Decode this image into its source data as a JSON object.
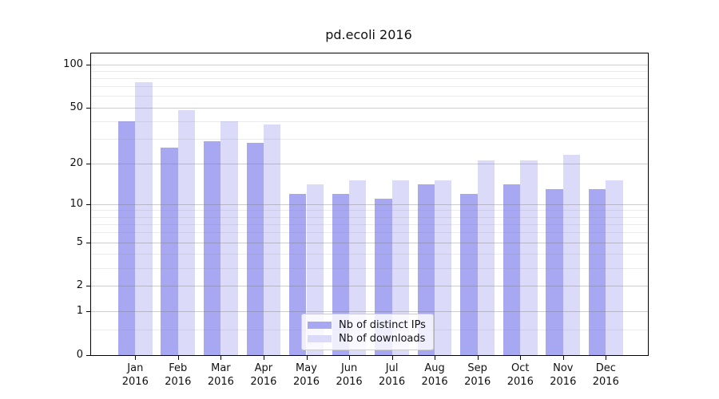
{
  "title": "pd.ecoli 2016",
  "chart_data": {
    "type": "bar",
    "title": "pd.ecoli 2016",
    "categories": [
      "Jan 2016",
      "Feb 2016",
      "Mar 2016",
      "Apr 2016",
      "May 2016",
      "Jun 2016",
      "Jul 2016",
      "Aug 2016",
      "Sep 2016",
      "Oct 2016",
      "Nov 2016",
      "Dec 2016"
    ],
    "series": [
      {
        "name": "Nb of distinct IPs",
        "color": "#a8a8f2",
        "values": [
          40,
          26,
          29,
          28,
          12,
          12,
          11,
          14,
          12,
          14,
          13,
          13
        ]
      },
      {
        "name": "Nb of downloads",
        "color": "#dbdbf9",
        "values": [
          75,
          48,
          40,
          38,
          14,
          15,
          15,
          15,
          21,
          21,
          23,
          15
        ]
      }
    ],
    "xlabel": "",
    "ylabel": "",
    "yscale": "log1p",
    "ylim": [
      0,
      119
    ],
    "y_major_ticks": [
      0,
      1,
      2,
      5,
      10,
      20,
      50,
      100
    ],
    "y_minor_gridlines": [
      0.5,
      3,
      4,
      6,
      7,
      8,
      9,
      30,
      40,
      60,
      70,
      80,
      90
    ],
    "grid": true,
    "legend_position": "lower center"
  },
  "colors": {
    "bar_distinct_ips": "#a8a8f2",
    "bar_downloads": "#dbdbf9",
    "grid_major": "#c6c6c6",
    "grid_minor": "#e9e9e9",
    "axis": "#000000",
    "text": "#111111",
    "legend_border": "#cccccc",
    "background": "#ffffff"
  }
}
